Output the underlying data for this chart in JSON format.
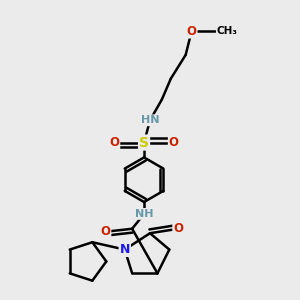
{
  "bg_color": "#ebebeb",
  "bond_lw": 1.8,
  "atom_colors": {
    "N": "#1a1aee",
    "O": "#cc2200",
    "S": "#cccc00",
    "C": "#000000",
    "HN": "#6699aa"
  },
  "figsize": [
    3.0,
    3.0
  ],
  "dpi": 100
}
